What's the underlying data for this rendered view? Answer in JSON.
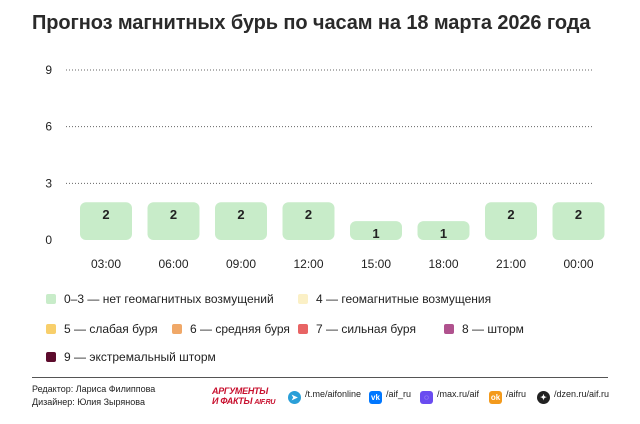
{
  "title": "Прогноз магнитных бурь по часам на 18 марта 2026 года",
  "chart_data": {
    "type": "bar",
    "categories": [
      "03:00",
      "06:00",
      "09:00",
      "12:00",
      "15:00",
      "18:00",
      "21:00",
      "00:00"
    ],
    "values": [
      2,
      2,
      2,
      2,
      1,
      1,
      2,
      2
    ],
    "yticks": [
      0,
      3,
      6,
      9
    ],
    "ylim": [
      0,
      9
    ],
    "grid": true,
    "data_labels": true,
    "bar_color": "#c8ecc9"
  },
  "legend": [
    {
      "label": "0–3 — нет геомагнитных возмущений",
      "color": "#c8ecc9"
    },
    {
      "label": "4 — геомагнитные возмущения",
      "color": "#fbf0c6"
    },
    {
      "label": "5 — слабая буря",
      "color": "#f8cf6b"
    },
    {
      "label": "6 — средняя буря",
      "color": "#f0a868"
    },
    {
      "label": "7 — сильная буря",
      "color": "#e86464"
    },
    {
      "label": "8 — шторм",
      "color": "#b0528e"
    },
    {
      "label": "9 — экстремальный шторм",
      "color": "#5c0b2c"
    }
  ],
  "credits": {
    "editor": "Редактор: Лариса Филиппова",
    "designer": "Дизайнер: Юлия Зырянова"
  },
  "logo": {
    "line1": "АРГУМЕНТЫ",
    "line2": "И ФАКТЫ",
    "domain": "AIF.RU"
  },
  "social": [
    {
      "icon": "telegram-icon",
      "glyph": "➤",
      "color": "#2a9fd8",
      "text": "/t.me/aifonline"
    },
    {
      "icon": "vk-icon",
      "glyph": "vk",
      "color": "#0077ff",
      "text": "/aif_ru"
    },
    {
      "icon": "max-icon",
      "glyph": "◌",
      "color": "#6a4cf0",
      "text": "/max.ru/aif"
    },
    {
      "icon": "ok-icon",
      "glyph": "ok",
      "color": "#f39a1c",
      "text": "/aifru"
    },
    {
      "icon": "dzen-icon",
      "glyph": "✦",
      "color": "#222222",
      "text": "/dzen.ru/aif.ru"
    }
  ]
}
